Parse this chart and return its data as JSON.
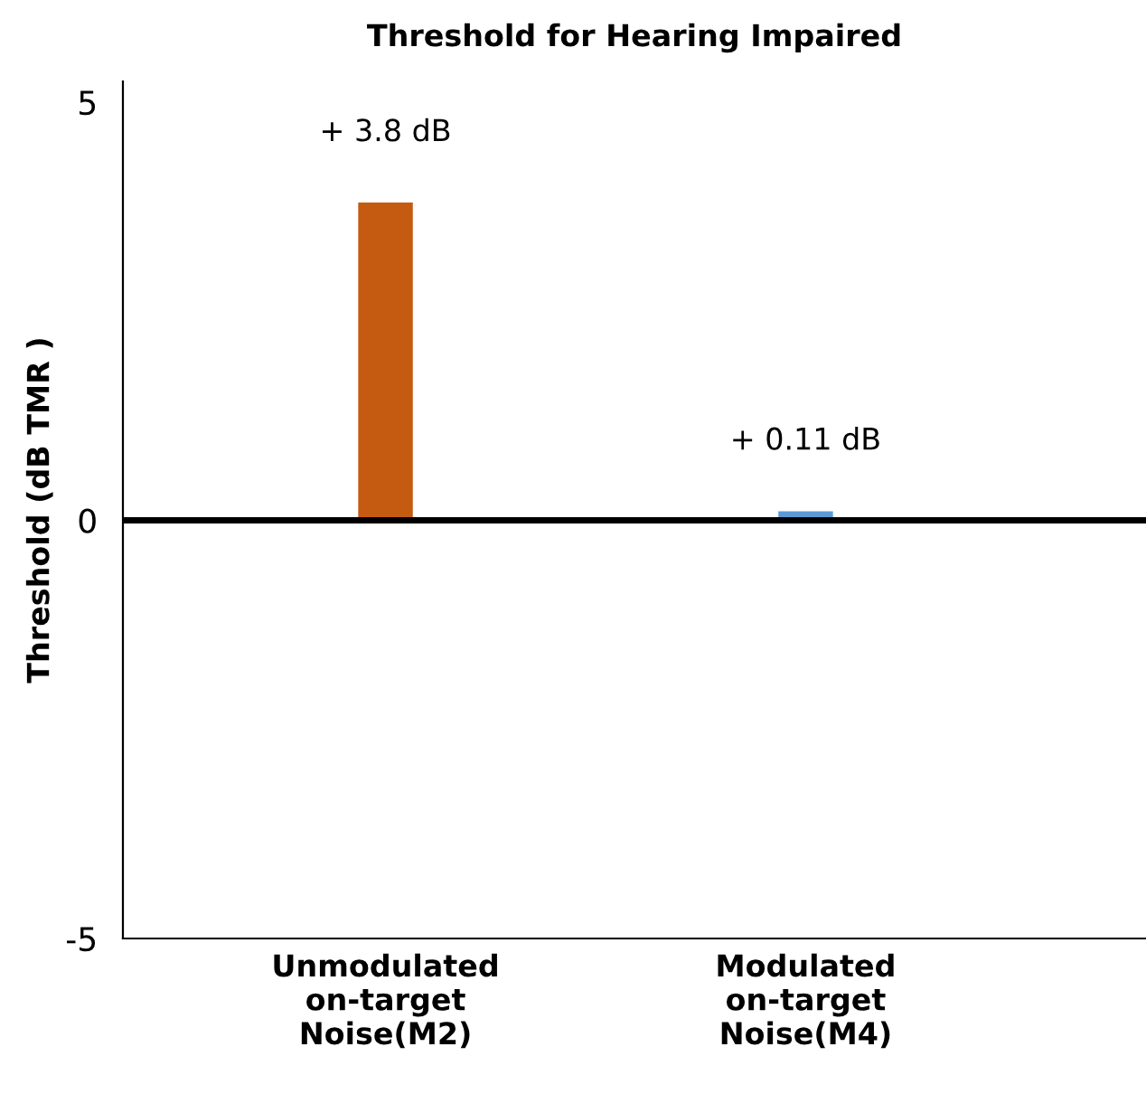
{
  "chart_data": {
    "type": "bar",
    "title": "Threshold for Hearing Impaired",
    "ylabel": "Threshold (dB TMR )",
    "categories": [
      "Unmodulated\non-target\nNoise(M2)",
      "Modulated\non-target\nNoise(M4)"
    ],
    "values": [
      3.8,
      0.11
    ],
    "colors": [
      "#c55a11",
      "#5b9bd5"
    ],
    "value_labels": [
      "+ 3.8 dB",
      "+ 0.11 dB"
    ],
    "ylim": [
      -5,
      5.25
    ],
    "yticks": [
      -5,
      0,
      5
    ],
    "ref_lines": [
      {
        "axis": "y",
        "value": 0,
        "color": "#000000"
      }
    ],
    "grid": false,
    "legend": false
  }
}
